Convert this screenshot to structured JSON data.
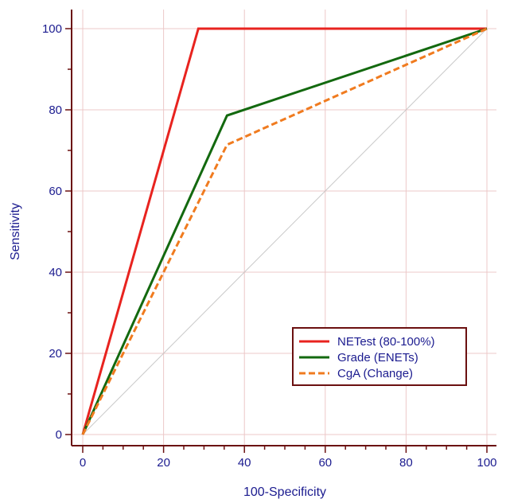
{
  "chart_data": {
    "type": "line",
    "title": "",
    "xlabel": "100-Specificity",
    "ylabel": "Sensitivity",
    "xlim": [
      0,
      100
    ],
    "ylim": [
      0,
      100
    ],
    "xticks": [
      0,
      20,
      40,
      60,
      80,
      100
    ],
    "yticks": [
      0,
      20,
      40,
      60,
      80,
      100
    ],
    "grid": true,
    "legend_position": "bottom-right",
    "reference_line": {
      "x": [
        0,
        100
      ],
      "y": [
        0,
        100
      ],
      "color": "#c8c8c8"
    },
    "series": [
      {
        "name": "NETest (80-100%)",
        "color": "#e8231f",
        "dash": "solid",
        "x": [
          0,
          28.6,
          100
        ],
        "y": [
          0,
          100,
          100
        ]
      },
      {
        "name": "Grade (ENETs)",
        "color": "#13690f",
        "dash": "solid",
        "x": [
          0,
          35.7,
          100
        ],
        "y": [
          0,
          78.6,
          100
        ]
      },
      {
        "name": "CgA (Change)",
        "color": "#f07b1f",
        "dash": "dashed",
        "x": [
          0,
          35.7,
          100
        ],
        "y": [
          0,
          71.4,
          100
        ]
      }
    ],
    "colors": {
      "axis": "#6b1010",
      "grid": "#ecc8c8",
      "text": "#1b1b8f"
    }
  }
}
